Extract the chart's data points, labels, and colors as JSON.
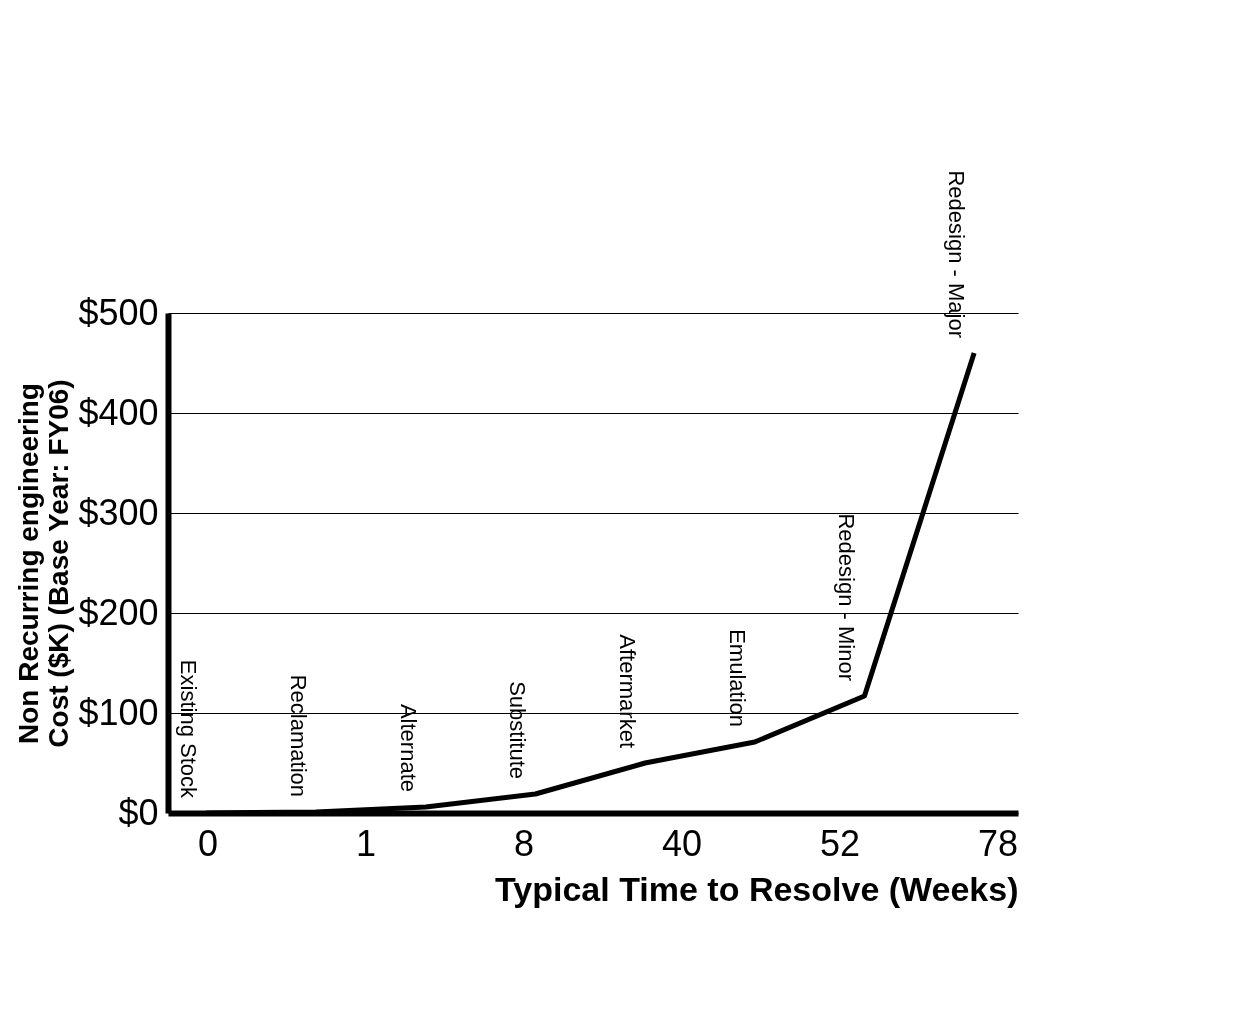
{
  "chart_data": {
    "type": "line",
    "xlabel": "Typical Time to Resolve (Weeks)",
    "ylabel": "Non Recurring engineering Cost ($K) (Base Year:  FY06)",
    "categories": [
      "Existing Stock",
      "Reclamation",
      "Alternate",
      "Substitute",
      "Aftermarket",
      "Emulation",
      "Redesign - Minor",
      "Redesign - Major"
    ],
    "series": [
      {
        "color": "#000000",
        "values": [
          0,
          1,
          6,
          19,
          50,
          71,
          117,
          460
        ]
      }
    ],
    "ylim": [
      0,
      500
    ],
    "yticks": [
      {
        "value": 0,
        "label": "$0"
      },
      {
        "value": 100,
        "label": "$100"
      },
      {
        "value": 200,
        "label": "$200"
      },
      {
        "value": 300,
        "label": "$300"
      },
      {
        "value": 400,
        "label": "$400"
      },
      {
        "value": 500,
        "label": "$500"
      }
    ],
    "grid": "y",
    "marker": "none",
    "line_style": "solid",
    "annotations": [
      "0",
      "1",
      "8",
      "40",
      "52",
      "78"
    ]
  }
}
